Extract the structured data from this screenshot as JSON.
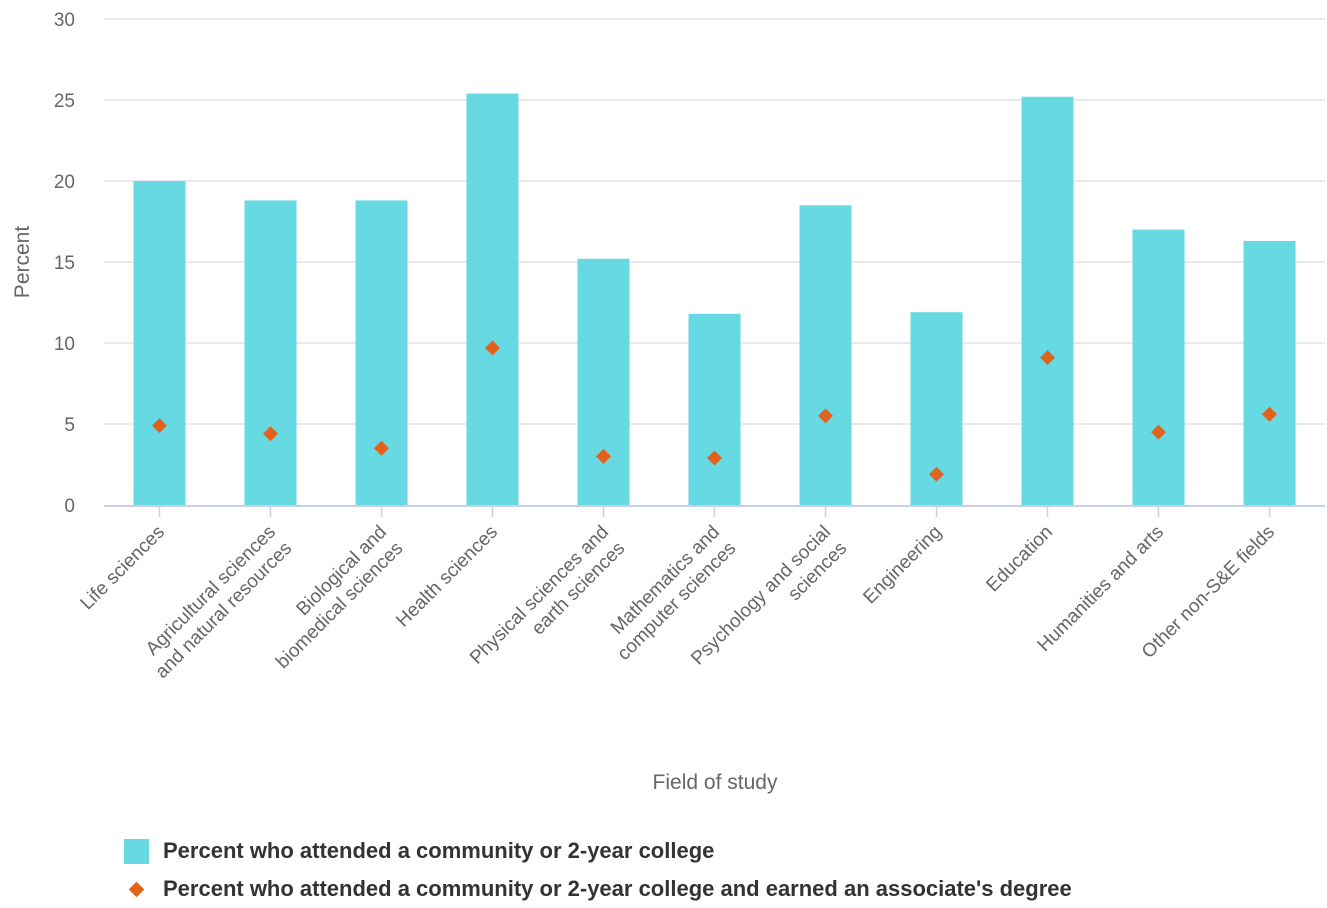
{
  "colors": {
    "bar": "#66d9e3",
    "marker": "#e0621d",
    "grid": "#e3e3e8",
    "axis": "#c8cfe6",
    "text": "#666666"
  },
  "chart_data": {
    "type": "bar",
    "xlabel": "Field of study",
    "ylabel": "Percent",
    "ylim": [
      0,
      30
    ],
    "yticks": [
      0,
      5,
      10,
      15,
      20,
      25,
      30
    ],
    "grid": true,
    "legend_position": "bottom-left",
    "categories": [
      [
        "Life sciences"
      ],
      [
        "Agricultural sciences",
        "and natural resources"
      ],
      [
        "Biological and",
        "biomedical sciences"
      ],
      [
        "Health sciences"
      ],
      [
        "Physical sciences and",
        "earth sciences"
      ],
      [
        "Mathematics and",
        "computer sciences"
      ],
      [
        "Psychology and social",
        "sciences"
      ],
      [
        "Engineering"
      ],
      [
        "Education"
      ],
      [
        "Humanities and arts"
      ],
      [
        "Other non-S&E fields"
      ]
    ],
    "series": [
      {
        "name": "Percent who attended a community or 2-year college",
        "type": "bar",
        "values": [
          20.0,
          18.8,
          18.8,
          25.4,
          15.2,
          11.8,
          18.5,
          11.9,
          25.2,
          17.0,
          16.3
        ]
      },
      {
        "name": "Percent who attended a community or 2-year college and earned an associate's degree",
        "type": "scatter",
        "marker": "diamond",
        "values": [
          4.9,
          4.4,
          3.5,
          9.7,
          3.0,
          2.9,
          5.5,
          1.9,
          9.1,
          4.5,
          5.6
        ]
      }
    ]
  }
}
